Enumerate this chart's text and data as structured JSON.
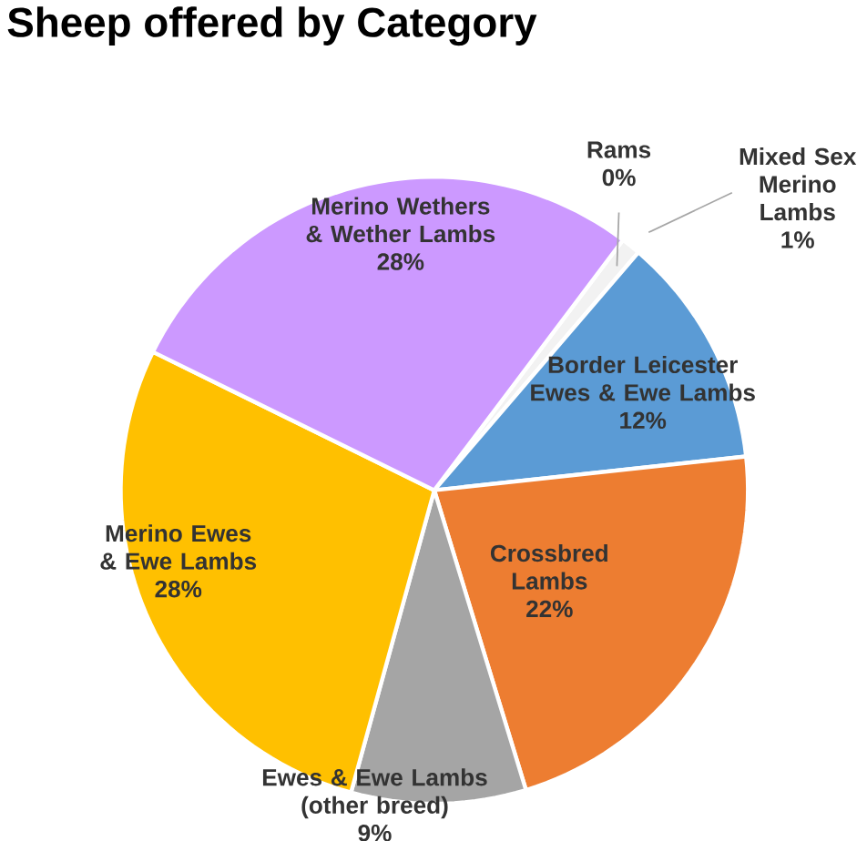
{
  "chart_data": {
    "type": "pie",
    "title": "Sheep offered by Category",
    "categories": [
      "Rams",
      "Mixed Sex Merino Lambs",
      "Border Leicester Ewes & Ewe Lambs",
      "Crossbred Lambs",
      "Ewes & Ewe Lambs (other breed)",
      "Merino Ewes & Ewe Lambs",
      "Merino Wethers & Wether Lambs"
    ],
    "values": [
      0,
      1,
      12,
      22,
      9,
      28,
      28
    ],
    "value_labels": [
      "0%",
      "1%",
      "12%",
      "22%",
      "9%",
      "28%",
      "28%"
    ],
    "colors": [
      "#70ad47",
      "#f2f2f2",
      "#5b9bd5",
      "#ed7d31",
      "#a5a5a5",
      "#ffc000",
      "#cc99ff"
    ]
  }
}
